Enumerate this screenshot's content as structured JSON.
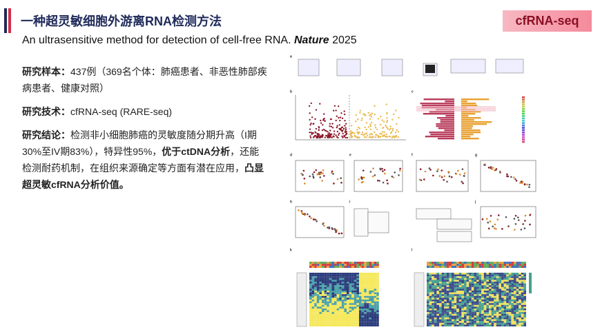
{
  "header": {
    "title": "一种超灵敏细胞外游离RNA检测方法",
    "subtitle": [
      {
        "text": "An ultrasensitive method for detection of cell-free RNA. ",
        "bold": false,
        "italic": false
      },
      {
        "text": "Nature",
        "bold": true,
        "italic": true
      },
      {
        "text": " 2025",
        "bold": false,
        "italic": false
      }
    ],
    "tag": "cfRNA-seq"
  },
  "body": {
    "paragraphs": [
      [
        {
          "text": "研究样本：",
          "bold": true
        },
        {
          "text": "437例（369名个体：肺癌患者、非恶性肺部疾病患者、健康对照）",
          "bold": false
        }
      ],
      [
        {
          "text": "研究技术：",
          "bold": true
        },
        {
          "text": "cfRNA-seq (RARE-seq)",
          "bold": false
        }
      ],
      [
        {
          "text": "研究结论：",
          "bold": true
        },
        {
          "text": "检测非小细胞肺癌的灵敏度随分期升高（I期30%至IV期83%），特异性95%，",
          "bold": false
        },
        {
          "text": "优于ctDNA分析",
          "bold": true
        },
        {
          "text": "，还能检测耐药机制，在组织来源确定等方面有潜在应用，",
          "bold": false
        },
        {
          "text": "凸显超灵敏cfRNA分析价值。",
          "bold": true
        }
      ]
    ]
  },
  "figure": {
    "panels": [
      "a",
      "b",
      "c",
      "d",
      "e",
      "f",
      "g",
      "h",
      "i",
      "j",
      "k",
      "l"
    ]
  }
}
